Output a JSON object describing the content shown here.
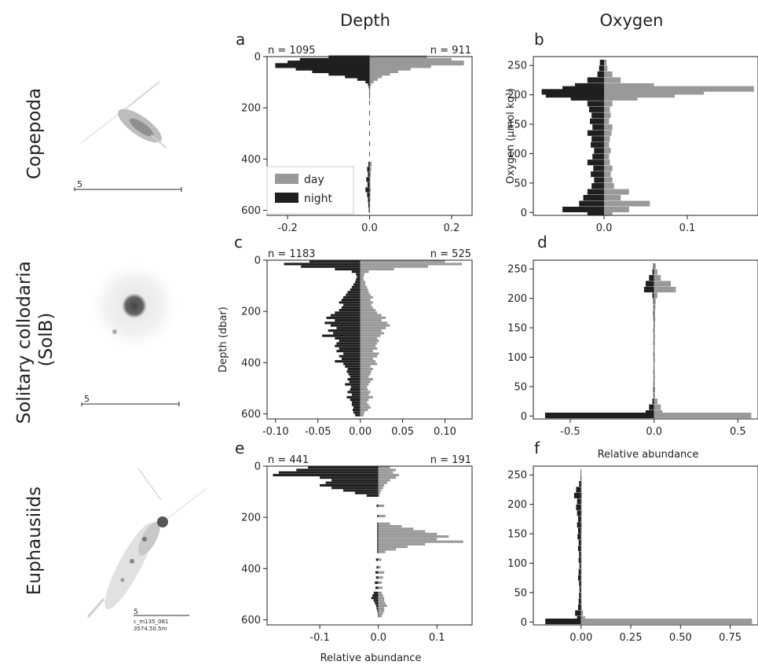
{
  "column_titles": [
    "Depth",
    "Oxygen"
  ],
  "rows": [
    {
      "title_lines": [
        "Copepoda"
      ]
    },
    {
      "title_lines": [
        "Solitary collodaria",
        "(SolB)"
      ]
    },
    {
      "title_lines": [
        "Euphausiids"
      ]
    }
  ],
  "specimen_images": [
    {
      "name": "copepoda",
      "scale_label": "5"
    },
    {
      "name": "solitary-collodaria",
      "scale_label": "5"
    },
    {
      "name": "euphausiids",
      "scale_label": "5",
      "caption_lines": [
        "c_m135_081",
        "3574.50.5m"
      ]
    }
  ],
  "colors": {
    "day": "#999999",
    "night": "#1f1f1f"
  },
  "chart_data": [
    {
      "panel": "a",
      "type": "bar",
      "orientation": "horizontal-mirrored",
      "y_variable": "Depth",
      "ylabel": "",
      "xlabel": "",
      "ylim": [
        0,
        620
      ],
      "y_inverted": true,
      "xlim": [
        -0.25,
        0.25
      ],
      "yticks": [
        0,
        200,
        400,
        600
      ],
      "xticks": [
        "-0.2",
        "0.0",
        "0.2"
      ],
      "xtick_values": [
        -0.2,
        0.0,
        0.2
      ],
      "n_night": "n = 1095",
      "n_day": "n = 911",
      "legend": {
        "position": "lower-left",
        "entries": [
          "day",
          "night"
        ]
      },
      "bin_centers": [
        5,
        15,
        25,
        35,
        45,
        55,
        65,
        75,
        85,
        95,
        105,
        115,
        125,
        135,
        145,
        155,
        180,
        220,
        260,
        300,
        340,
        380,
        420,
        440,
        460,
        480,
        500,
        520,
        540,
        560,
        580,
        600
      ],
      "series": [
        {
          "name": "night",
          "values": [
            -0.1,
            -0.17,
            -0.2,
            -0.23,
            -0.18,
            -0.14,
            -0.1,
            -0.06,
            -0.03,
            -0.01,
            -0.004,
            -0.002,
            -0.001,
            -0.001,
            -0.001,
            -0.001,
            -0.001,
            -0.001,
            -0.001,
            -0.001,
            -0.001,
            -0.001,
            -0.003,
            -0.006,
            -0.004,
            -0.008,
            -0.005,
            -0.01,
            -0.006,
            -0.004,
            -0.003,
            -0.002
          ]
        },
        {
          "name": "day",
          "values": [
            0.14,
            0.2,
            0.23,
            0.15,
            0.1,
            0.07,
            0.05,
            0.03,
            0.02,
            0.01,
            0.004,
            0.002,
            0.001,
            0.001,
            0.001,
            0.001,
            0.001,
            0.001,
            0.001,
            0.001,
            0.001,
            0.001,
            0.005,
            0.004,
            0.003,
            0.002,
            0.002,
            0.003,
            0.002,
            0.002,
            0.001,
            0.001
          ]
        }
      ]
    },
    {
      "panel": "b",
      "type": "bar",
      "orientation": "horizontal-mirrored",
      "y_variable": "Oxygen",
      "ylabel": "Oxygen (µmol kg¹)",
      "xlabel": "",
      "ylim": [
        -5,
        265
      ],
      "y_inverted": false,
      "xlim": [
        -0.085,
        0.185
      ],
      "yticks": [
        0,
        50,
        100,
        150,
        200,
        250
      ],
      "xticks": [
        "0.0",
        "0.1"
      ],
      "xtick_values": [
        0.0,
        0.1
      ],
      "bin_centers": [
        255,
        245,
        235,
        225,
        215,
        210,
        205,
        200,
        195,
        185,
        175,
        165,
        155,
        145,
        135,
        125,
        115,
        105,
        95,
        85,
        75,
        65,
        55,
        45,
        35,
        25,
        15,
        5,
        0
      ],
      "series": [
        {
          "name": "night",
          "values": [
            -0.005,
            -0.006,
            -0.008,
            -0.02,
            -0.035,
            -0.05,
            -0.075,
            -0.07,
            -0.04,
            -0.02,
            -0.018,
            -0.015,
            -0.017,
            -0.014,
            -0.02,
            -0.015,
            -0.016,
            -0.012,
            -0.014,
            -0.02,
            -0.013,
            -0.016,
            -0.012,
            -0.015,
            -0.02,
            -0.025,
            -0.03,
            -0.05,
            -0.02
          ]
        },
        {
          "name": "day",
          "values": [
            0.003,
            0.004,
            0.01,
            0.02,
            0.06,
            0.18,
            0.12,
            0.085,
            0.04,
            0.01,
            0.007,
            0.008,
            0.006,
            0.01,
            0.009,
            0.007,
            0.006,
            0.008,
            0.006,
            0.007,
            0.01,
            0.008,
            0.01,
            0.012,
            0.03,
            0.02,
            0.055,
            0.03,
            0.01
          ]
        }
      ]
    },
    {
      "panel": "c",
      "type": "bar",
      "orientation": "horizontal-mirrored",
      "y_variable": "Depth",
      "ylabel": "Depth (dbar)",
      "xlabel": "",
      "ylim": [
        0,
        620
      ],
      "y_inverted": true,
      "xlim": [
        -0.11,
        0.132
      ],
      "yticks": [
        0,
        200,
        400,
        600
      ],
      "xticks": [
        "-0.10",
        "-0.05",
        "0.00",
        "0.05",
        "0.10"
      ],
      "xtick_values": [
        -0.1,
        -0.05,
        0.0,
        0.05,
        0.1
      ],
      "n_night": "n = 1183",
      "n_day": "n = 525",
      "bin_centers": [
        5,
        15,
        25,
        35,
        45,
        55,
        65,
        75,
        85,
        95,
        105,
        115,
        125,
        135,
        145,
        155,
        165,
        175,
        185,
        195,
        205,
        215,
        225,
        235,
        245,
        255,
        265,
        275,
        285,
        295,
        305,
        315,
        325,
        335,
        345,
        355,
        365,
        375,
        385,
        395,
        405,
        415,
        425,
        435,
        445,
        455,
        465,
        475,
        485,
        495,
        505,
        515,
        525,
        535,
        545,
        555,
        565,
        575,
        585,
        595,
        605
      ],
      "series": [
        {
          "name": "night",
          "values": [
            -0.06,
            -0.09,
            -0.07,
            -0.03,
            -0.01,
            -0.005,
            -0.004,
            -0.005,
            -0.006,
            -0.008,
            -0.01,
            -0.012,
            -0.015,
            -0.017,
            -0.02,
            -0.022,
            -0.025,
            -0.02,
            -0.022,
            -0.025,
            -0.03,
            -0.035,
            -0.04,
            -0.03,
            -0.042,
            -0.035,
            -0.028,
            -0.038,
            -0.032,
            -0.045,
            -0.03,
            -0.025,
            -0.028,
            -0.03,
            -0.025,
            -0.028,
            -0.02,
            -0.025,
            -0.022,
            -0.03,
            -0.02,
            -0.018,
            -0.015,
            -0.016,
            -0.014,
            -0.012,
            -0.015,
            -0.013,
            -0.018,
            -0.011,
            -0.012,
            -0.015,
            -0.01,
            -0.016,
            -0.012,
            -0.01,
            -0.01,
            -0.008,
            -0.009,
            -0.008,
            -0.006
          ]
        },
        {
          "name": "day",
          "values": [
            0.1,
            0.12,
            0.08,
            0.04,
            0.01,
            0.005,
            0.004,
            0.004,
            0.006,
            0.006,
            0.008,
            0.009,
            0.01,
            0.012,
            0.015,
            0.012,
            0.015,
            0.013,
            0.015,
            0.018,
            0.02,
            0.025,
            0.03,
            0.025,
            0.032,
            0.035,
            0.03,
            0.025,
            0.028,
            0.024,
            0.02,
            0.022,
            0.02,
            0.018,
            0.02,
            0.015,
            0.022,
            0.02,
            0.015,
            0.018,
            0.02,
            0.012,
            0.015,
            0.013,
            0.012,
            0.01,
            0.015,
            0.012,
            0.01,
            0.008,
            0.009,
            0.012,
            0.01,
            0.015,
            0.01,
            0.008,
            0.01,
            0.012,
            0.009,
            0.005,
            0.004
          ]
        }
      ]
    },
    {
      "panel": "d",
      "type": "bar",
      "orientation": "horizontal-mirrored",
      "y_variable": "Oxygen",
      "ylabel": "",
      "xlabel": "Relative abundance",
      "ylim": [
        -5,
        265
      ],
      "y_inverted": false,
      "xlim": [
        -0.72,
        0.62
      ],
      "yticks": [
        0,
        50,
        100,
        150,
        200,
        250
      ],
      "xticks": [
        "-0.5",
        "0.0",
        "0.5"
      ],
      "xtick_values": [
        -0.5,
        0.0,
        0.5
      ],
      "bin_centers": [
        255,
        245,
        235,
        225,
        215,
        205,
        195,
        185,
        175,
        165,
        155,
        145,
        135,
        125,
        115,
        105,
        95,
        85,
        75,
        65,
        55,
        45,
        35,
        25,
        15,
        5,
        1
      ],
      "series": [
        {
          "name": "night",
          "values": [
            -0.005,
            -0.01,
            -0.03,
            -0.05,
            -0.06,
            -0.01,
            -0.005,
            -0.004,
            -0.005,
            -0.004,
            -0.003,
            -0.004,
            -0.003,
            -0.004,
            -0.003,
            -0.004,
            -0.003,
            -0.003,
            -0.004,
            -0.003,
            -0.004,
            -0.005,
            -0.004,
            -0.01,
            -0.03,
            -0.05,
            -0.65
          ]
        },
        {
          "name": "day",
          "values": [
            0.01,
            0.02,
            0.04,
            0.1,
            0.13,
            0.02,
            0.01,
            0.008,
            0.006,
            0.007,
            0.005,
            0.004,
            0.005,
            0.004,
            0.003,
            0.004,
            0.005,
            0.003,
            0.004,
            0.005,
            0.004,
            0.006,
            0.005,
            0.02,
            0.04,
            0.05,
            0.58
          ]
        }
      ]
    },
    {
      "panel": "e",
      "type": "bar",
      "orientation": "horizontal-mirrored",
      "y_variable": "Depth",
      "ylabel": "",
      "xlabel": "Relative abundance",
      "ylim": [
        0,
        620
      ],
      "y_inverted": true,
      "xlim": [
        -0.19,
        0.16
      ],
      "yticks": [
        0,
        200,
        400,
        600
      ],
      "xticks": [
        "-0.1",
        "0.0",
        "0.1"
      ],
      "xtick_values": [
        -0.1,
        0.0,
        0.1
      ],
      "n_night": "n = 441",
      "n_day": "n = 191",
      "bin_centers": [
        5,
        15,
        25,
        35,
        45,
        55,
        65,
        75,
        85,
        95,
        105,
        115,
        155,
        195,
        225,
        235,
        245,
        255,
        265,
        275,
        285,
        295,
        305,
        315,
        325,
        335,
        365,
        395,
        415,
        435,
        455,
        475,
        495,
        505,
        515,
        525,
        535,
        545,
        555,
        565,
        575,
        585
      ],
      "series": [
        {
          "name": "night",
          "values": [
            -0.12,
            -0.14,
            -0.17,
            -0.18,
            -0.1,
            -0.08,
            -0.09,
            -0.1,
            -0.08,
            -0.06,
            -0.04,
            -0.02,
            -0.003,
            -0.002,
            -0.002,
            -0.002,
            -0.002,
            -0.002,
            -0.002,
            -0.002,
            -0.002,
            -0.002,
            -0.002,
            -0.002,
            -0.002,
            -0.002,
            -0.004,
            -0.003,
            -0.005,
            -0.004,
            -0.006,
            -0.005,
            -0.008,
            -0.01,
            -0.012,
            -0.008,
            -0.006,
            -0.004,
            -0.003,
            -0.002,
            -0.001,
            -0.001
          ]
        },
        {
          "name": "day",
          "values": [
            0.02,
            0.03,
            0.025,
            0.035,
            0.03,
            0.02,
            0.015,
            0.01,
            0.008,
            0.005,
            0.003,
            0.002,
            0.01,
            0.012,
            0.02,
            0.04,
            0.06,
            0.08,
            0.1,
            0.12,
            0.1,
            0.145,
            0.08,
            0.05,
            0.03,
            0.012,
            0.005,
            0.004,
            0.01,
            0.008,
            0.006,
            0.007,
            0.006,
            0.008,
            0.01,
            0.01,
            0.012,
            0.015,
            0.01,
            0.01,
            0.008,
            0.006
          ]
        }
      ]
    },
    {
      "panel": "f",
      "type": "bar",
      "orientation": "horizontal-mirrored",
      "y_variable": "Oxygen",
      "ylabel": "",
      "xlabel": "",
      "ylim": [
        -5,
        265
      ],
      "y_inverted": false,
      "xlim": [
        -0.24,
        0.89
      ],
      "yticks": [
        0,
        50,
        100,
        150,
        200,
        250
      ],
      "xticks": [
        "0.00",
        "0.25",
        "0.50",
        "0.75"
      ],
      "xtick_values": [
        0.0,
        0.25,
        0.5,
        0.75
      ],
      "bin_centers": [
        255,
        245,
        235,
        225,
        215,
        205,
        195,
        185,
        175,
        165,
        155,
        145,
        135,
        125,
        115,
        105,
        95,
        85,
        75,
        65,
        55,
        45,
        35,
        25,
        15,
        5,
        1
      ],
      "series": [
        {
          "name": "night",
          "values": [
            -0.002,
            -0.003,
            -0.01,
            -0.025,
            -0.035,
            -0.02,
            -0.025,
            -0.02,
            -0.015,
            -0.02,
            -0.015,
            -0.018,
            -0.012,
            -0.015,
            -0.01,
            -0.012,
            -0.008,
            -0.012,
            -0.015,
            -0.01,
            -0.008,
            -0.01,
            -0.012,
            -0.015,
            -0.03,
            -0.02,
            -0.18
          ]
        },
        {
          "name": "day",
          "values": [
            0.002,
            0.002,
            0.004,
            0.003,
            0.005,
            0.004,
            0.003,
            0.004,
            0.003,
            0.004,
            0.003,
            0.002,
            0.003,
            0.002,
            0.002,
            0.003,
            0.002,
            0.002,
            0.002,
            0.003,
            0.002,
            0.002,
            0.003,
            0.004,
            0.01,
            0.02,
            0.86
          ]
        }
      ]
    }
  ]
}
